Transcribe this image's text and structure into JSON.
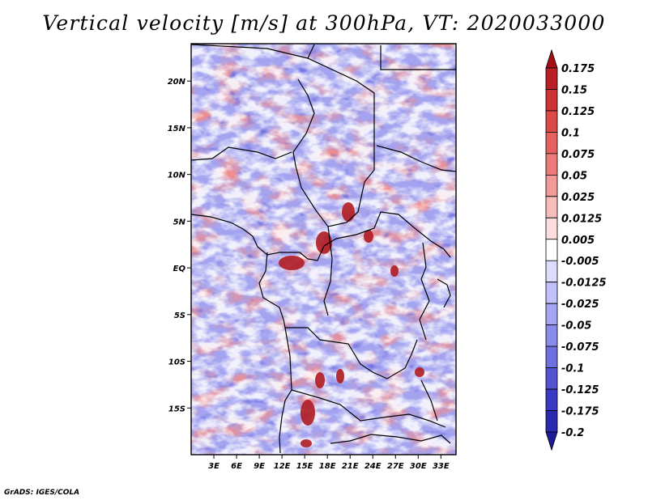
{
  "chart_data": {
    "type": "heatmap",
    "title": "Vertical velocity [m/s] at 300hPa, VT: 2020033000",
    "variable": "Vertical velocity",
    "units": "m/s",
    "level": "300hPa",
    "valid_time": "2020033000",
    "lon_range": [
      0,
      35
    ],
    "lat_range": [
      -20,
      24
    ],
    "x_ticks": [
      "3E",
      "6E",
      "9E",
      "12E",
      "15E",
      "18E",
      "21E",
      "24E",
      "27E",
      "30E",
      "33E"
    ],
    "x_tick_values": [
      3,
      6,
      9,
      12,
      15,
      18,
      21,
      24,
      27,
      30,
      33
    ],
    "y_ticks": [
      "20N",
      "15N",
      "10N",
      "5N",
      "EQ",
      "5S",
      "10S",
      "15S"
    ],
    "y_tick_values": [
      20,
      15,
      10,
      5,
      0,
      -5,
      -10,
      -15
    ],
    "colorbar_levels": [
      "0.175",
      "0.15",
      "0.125",
      "0.1",
      "0.075",
      "0.05",
      "0.025",
      "0.0125",
      "0.005",
      "-0.005",
      "-0.0125",
      "-0.025",
      "-0.05",
      "-0.075",
      "-0.1",
      "-0.125",
      "-0.175",
      "-0.2"
    ],
    "colorbar_colors": [
      "#a50f15",
      "#bb1f26",
      "#cf3232",
      "#dc4a48",
      "#e4615f",
      "#ea7b78",
      "#f19a97",
      "#f7bdbb",
      "#fcdede",
      "#ffffff",
      "#dcdcff",
      "#c0c0fb",
      "#a5a5f3",
      "#8a8aeb",
      "#6f6fe0",
      "#5454d3",
      "#3a3ac4",
      "#2a2ab0",
      "#1c1c99"
    ]
  },
  "footer": {
    "credit": "GrADS: IGES/COLA"
  }
}
